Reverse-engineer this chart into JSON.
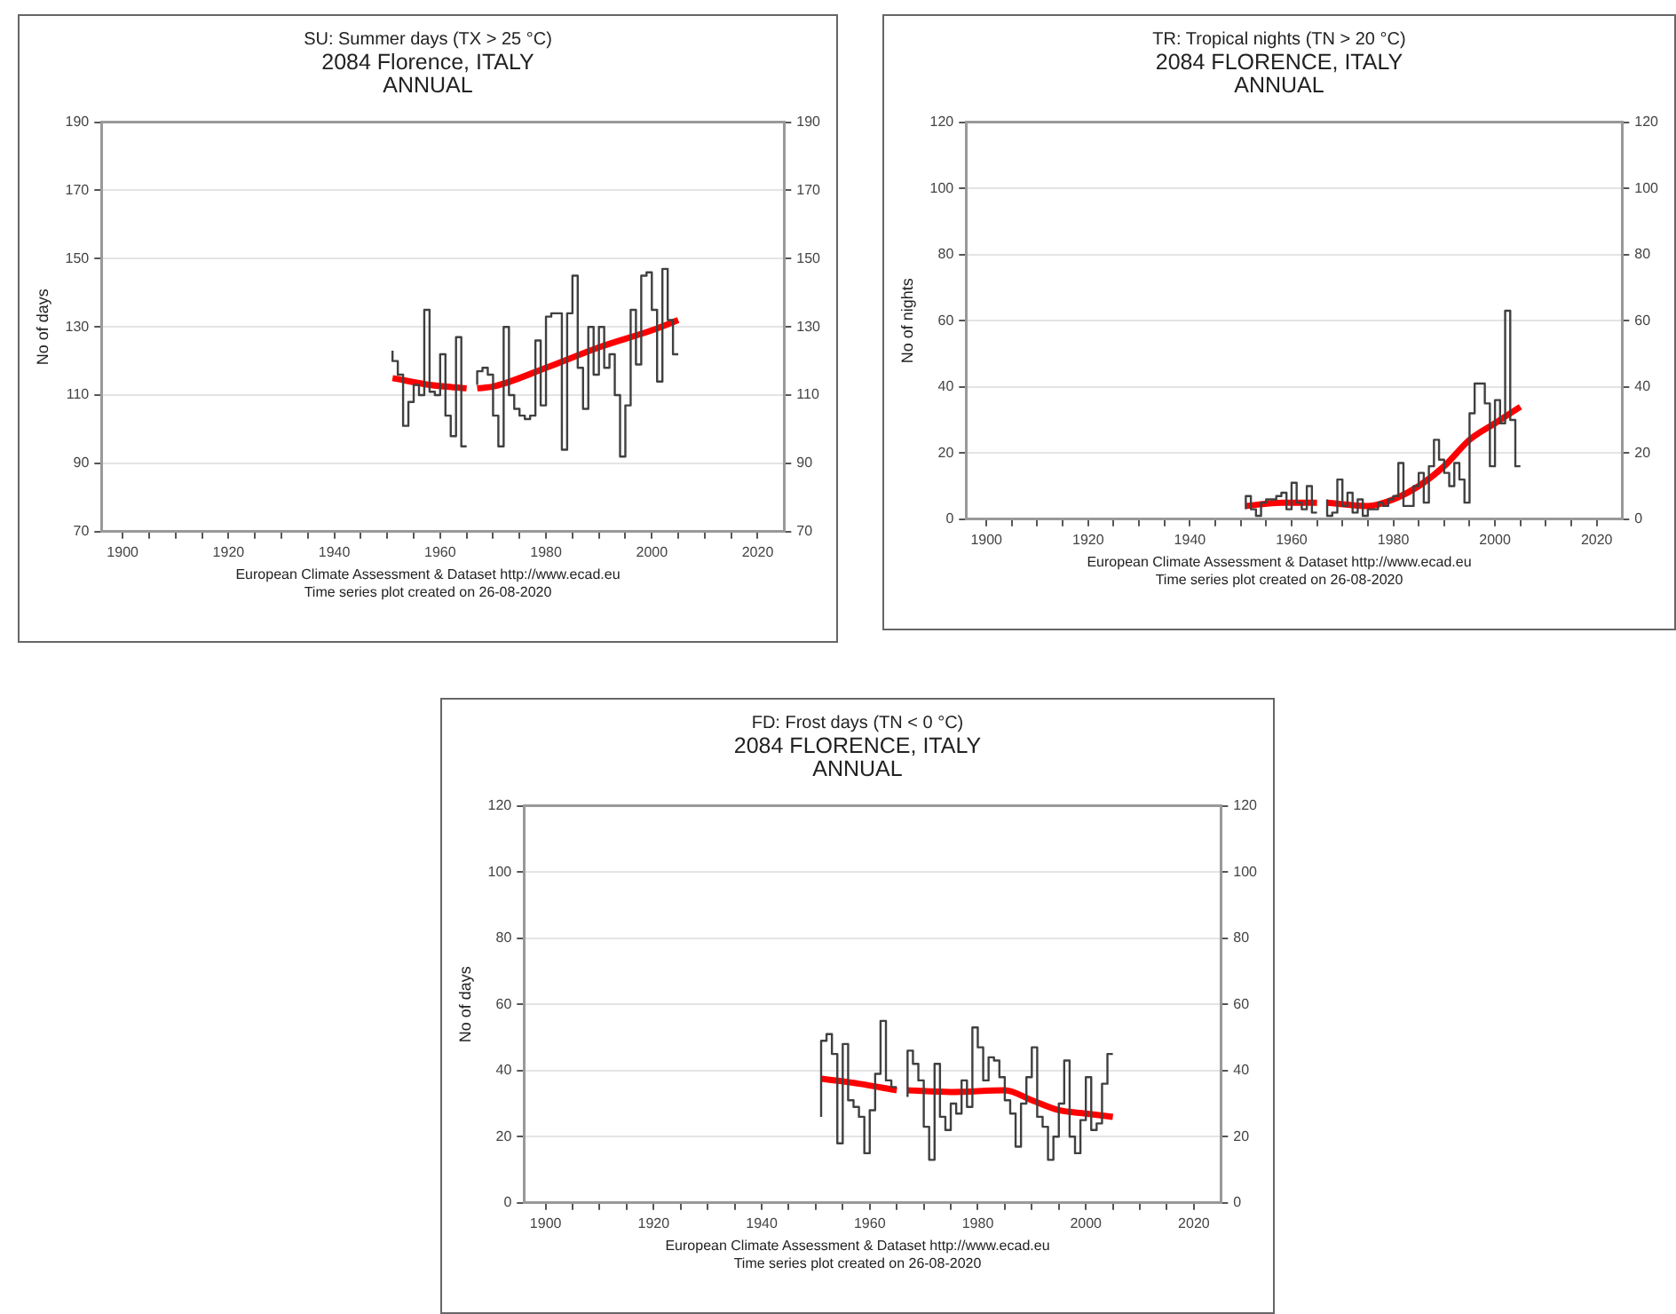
{
  "chart_data": [
    {
      "type": "step",
      "title": "SU: Summer days (TX > 25 °C)",
      "subtitle": "2084 Florence, ITALY",
      "annotations": [
        "ANNUAL",
        "European Climate Assessment & Dataset  http://www.ecad.eu",
        "Time series plot created on 26-08-2020"
      ],
      "ylabel": "No of days",
      "xlim": [
        1896,
        2025
      ],
      "xticks": [
        1900,
        {
          "value": 1905,
          "label": null
        },
        {
          "value": 1910,
          "label": null
        },
        {
          "value": 1915,
          "label": null
        },
        1920,
        {
          "value": 1925,
          "label": null
        },
        {
          "value": 1930,
          "label": null
        },
        {
          "value": 1935,
          "label": null
        },
        1940,
        {
          "value": 1945,
          "label": null
        },
        {
          "value": 1950,
          "label": null
        },
        {
          "value": 1955,
          "label": null
        },
        1960,
        {
          "value": 1965,
          "label": null
        },
        {
          "value": 1970,
          "label": null
        },
        {
          "value": 1975,
          "label": null
        },
        1980,
        {
          "value": 1985,
          "label": null
        },
        {
          "value": 1990,
          "label": null
        },
        {
          "value": 1995,
          "label": null
        },
        2000,
        {
          "value": 2005,
          "label": null
        },
        {
          "value": 2010,
          "label": null
        },
        {
          "value": 2015,
          "label": null
        },
        2020
      ],
      "ylim": [
        70,
        190
      ],
      "yticks": [
        70,
        90,
        110,
        130,
        150,
        170,
        190
      ],
      "y2lim": [
        70,
        190
      ],
      "y2ticks": [
        70,
        90,
        110,
        130,
        150,
        170,
        190
      ],
      "grid": "y",
      "series": [
        {
          "type": "step",
          "color": "#404040",
          "x": [
            1951,
            1952,
            1953,
            1954,
            1955,
            1956,
            1957,
            1958,
            1959,
            1960,
            1961,
            1962,
            1963,
            1964,
            1965,
            1966,
            1967,
            1968,
            1969,
            1970,
            1971,
            1972,
            1973,
            1974,
            1975,
            1976,
            1977,
            1978,
            1979,
            1980,
            1981,
            1982,
            1983,
            1984,
            1985,
            1986,
            1987,
            1988,
            1989,
            1990,
            1991,
            1992,
            1993,
            1994,
            1995,
            1996,
            1997,
            1998,
            1999,
            2000,
            2001,
            2002,
            2003,
            2004,
            2005
          ],
          "values": [
            123,
            120,
            116,
            101,
            108,
            113,
            110,
            135,
            111,
            110,
            122,
            104,
            98,
            127,
            95,
            null,
            113,
            117,
            118,
            116,
            104,
            95,
            130,
            110,
            106,
            104,
            103,
            104,
            126,
            107,
            133,
            134,
            134,
            94,
            134,
            145,
            118,
            106,
            130,
            116,
            130,
            118,
            122,
            110,
            92,
            107,
            135,
            119,
            145,
            146,
            135,
            114,
            147,
            132,
            122
          ]
        },
        {
          "type": "line",
          "color": "#ff0000",
          "x": [
            1951,
            1958,
            1965,
            1966,
            1967,
            1970,
            1980,
            1990,
            2000,
            2005
          ],
          "values": [
            115,
            113,
            112,
            null,
            112,
            112.5,
            118,
            124,
            129,
            132
          ]
        }
      ]
    },
    {
      "type": "step",
      "title": "TR: Tropical nights (TN > 20 °C)",
      "subtitle": "2084 FLORENCE, ITALY",
      "annotations": [
        "ANNUAL",
        "European Climate Assessment & Dataset  http://www.ecad.eu",
        "Time series plot created on 26-08-2020"
      ],
      "ylabel": "No of nights",
      "xlim": [
        1896,
        2025
      ],
      "xticks": [
        1900,
        {
          "value": 1905,
          "label": null
        },
        {
          "value": 1910,
          "label": null
        },
        {
          "value": 1915,
          "label": null
        },
        1920,
        {
          "value": 1925,
          "label": null
        },
        {
          "value": 1930,
          "label": null
        },
        {
          "value": 1935,
          "label": null
        },
        1940,
        {
          "value": 1945,
          "label": null
        },
        {
          "value": 1950,
          "label": null
        },
        {
          "value": 1955,
          "label": null
        },
        1960,
        {
          "value": 1965,
          "label": null
        },
        {
          "value": 1970,
          "label": null
        },
        {
          "value": 1975,
          "label": null
        },
        1980,
        {
          "value": 1985,
          "label": null
        },
        {
          "value": 1990,
          "label": null
        },
        {
          "value": 1995,
          "label": null
        },
        2000,
        {
          "value": 2005,
          "label": null
        },
        {
          "value": 2010,
          "label": null
        },
        {
          "value": 2015,
          "label": null
        },
        2020
      ],
      "ylim": [
        0,
        120
      ],
      "yticks": [
        0,
        20,
        40,
        60,
        80,
        100,
        120
      ],
      "y2lim": [
        0,
        120
      ],
      "y2ticks": [
        0,
        20,
        40,
        60,
        80,
        100,
        120
      ],
      "grid": "y",
      "series": [
        {
          "type": "step",
          "color": "#404040",
          "x": [
            1951,
            1952,
            1953,
            1954,
            1955,
            1956,
            1957,
            1958,
            1959,
            1960,
            1961,
            1962,
            1963,
            1964,
            1965,
            1966,
            1967,
            1968,
            1969,
            1970,
            1971,
            1972,
            1973,
            1974,
            1975,
            1976,
            1977,
            1978,
            1979,
            1980,
            1981,
            1982,
            1983,
            1984,
            1985,
            1986,
            1987,
            1988,
            1989,
            1990,
            1991,
            1992,
            1993,
            1994,
            1995,
            1996,
            1997,
            1998,
            1999,
            2000,
            2001,
            2002,
            2003,
            2004,
            2005
          ],
          "values": [
            3,
            7,
            3,
            1,
            5,
            6,
            6,
            7,
            8,
            3,
            11,
            5,
            3,
            10,
            2,
            null,
            6,
            1,
            2,
            12,
            4,
            8,
            2,
            6,
            1,
            3,
            3,
            5,
            4,
            6,
            7,
            17,
            4,
            4,
            10,
            14,
            5,
            16,
            24,
            18,
            14,
            10,
            17,
            12,
            5,
            32,
            41,
            41,
            35,
            16,
            36,
            29,
            63,
            30,
            16
          ]
        },
        {
          "type": "line",
          "color": "#ff0000",
          "x": [
            1951,
            1958,
            1965,
            1966,
            1967,
            1975,
            1980,
            1985,
            1990,
            1995,
            2000,
            2005
          ],
          "values": [
            4,
            5,
            5,
            null,
            5,
            4,
            6,
            10,
            16,
            24,
            29,
            34
          ]
        }
      ]
    },
    {
      "type": "step",
      "title": "FD: Frost days (TN < 0 °C)",
      "subtitle": "2084 FLORENCE, ITALY",
      "annotations": [
        "ANNUAL",
        "European Climate Assessment & Dataset  http://www.ecad.eu",
        "Time series plot created on 26-08-2020"
      ],
      "ylabel": "No of days",
      "xlim": [
        1896,
        2025
      ],
      "xticks": [
        1900,
        {
          "value": 1905,
          "label": null
        },
        {
          "value": 1910,
          "label": null
        },
        {
          "value": 1915,
          "label": null
        },
        1920,
        {
          "value": 1925,
          "label": null
        },
        {
          "value": 1930,
          "label": null
        },
        {
          "value": 1935,
          "label": null
        },
        1940,
        {
          "value": 1945,
          "label": null
        },
        {
          "value": 1950,
          "label": null
        },
        {
          "value": 1955,
          "label": null
        },
        1960,
        {
          "value": 1965,
          "label": null
        },
        {
          "value": 1970,
          "label": null
        },
        {
          "value": 1975,
          "label": null
        },
        1980,
        {
          "value": 1985,
          "label": null
        },
        {
          "value": 1990,
          "label": null
        },
        {
          "value": 1995,
          "label": null
        },
        2000,
        {
          "value": 2005,
          "label": null
        },
        {
          "value": 2010,
          "label": null
        },
        {
          "value": 2015,
          "label": null
        },
        2020
      ],
      "ylim": [
        0,
        120
      ],
      "yticks": [
        0,
        20,
        40,
        60,
        80,
        100,
        120
      ],
      "y2lim": [
        0,
        120
      ],
      "y2ticks": [
        0,
        20,
        40,
        60,
        80,
        100,
        120
      ],
      "grid": "y",
      "series": [
        {
          "type": "step",
          "color": "#404040",
          "x": [
            1951,
            1952,
            1953,
            1954,
            1955,
            1956,
            1957,
            1958,
            1959,
            1960,
            1961,
            1962,
            1963,
            1964,
            1965,
            1966,
            1967,
            1968,
            1969,
            1970,
            1971,
            1972,
            1973,
            1974,
            1975,
            1976,
            1977,
            1978,
            1979,
            1980,
            1981,
            1982,
            1983,
            1984,
            1985,
            1986,
            1987,
            1988,
            1989,
            1990,
            1991,
            1992,
            1993,
            1994,
            1995,
            1996,
            1997,
            1998,
            1999,
            2000,
            2001,
            2002,
            2003,
            2004,
            2005
          ],
          "values": [
            26,
            49,
            51,
            45,
            18,
            48,
            31,
            29,
            26,
            15,
            28,
            39,
            55,
            37,
            35,
            null,
            32,
            46,
            42,
            37,
            23,
            13,
            42,
            26,
            22,
            30,
            27,
            37,
            29,
            53,
            47,
            37,
            44,
            43,
            38,
            31,
            27,
            17,
            30,
            38,
            47,
            26,
            23,
            13,
            20,
            30,
            43,
            20,
            15,
            25,
            38,
            22,
            24,
            36,
            45
          ]
        },
        {
          "type": "line",
          "color": "#ff0000",
          "x": [
            1951,
            1958,
            1965,
            1966,
            1967,
            1975,
            1985,
            1990,
            1995,
            2000,
            2005
          ],
          "values": [
            37.5,
            36,
            34,
            null,
            34,
            33.5,
            34,
            31,
            28,
            27,
            26
          ]
        }
      ]
    }
  ]
}
